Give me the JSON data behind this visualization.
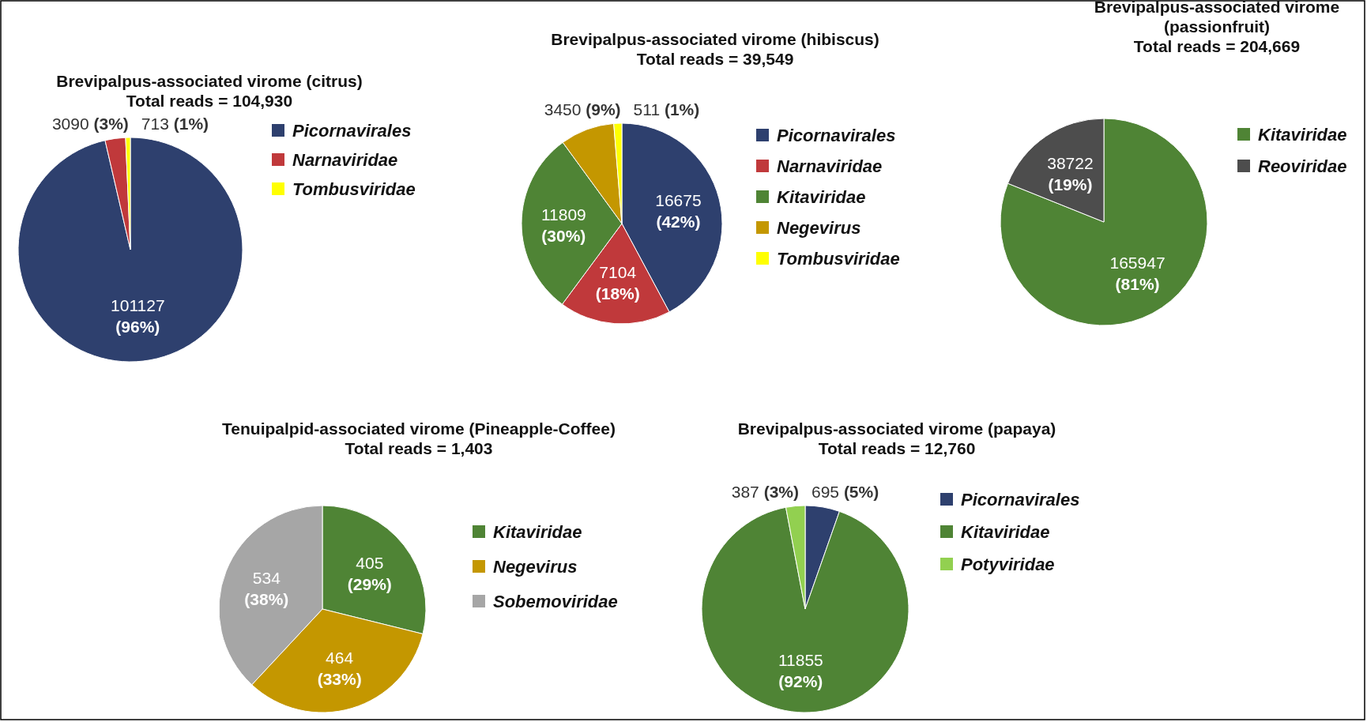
{
  "chart_data": [
    {
      "type": "pie",
      "title": "Brevipalpus-associated virome (citrus)",
      "subtitle": "Total reads = 104,930",
      "categories": [
        "Picornavirales",
        "Narnaviridae",
        "Tombusviridae"
      ],
      "values": [
        101127,
        3090,
        713
      ],
      "value_labels": [
        "101127 (96%)",
        "3090 (3%)",
        "713 (1%)"
      ],
      "colors": [
        "#2e406e",
        "#c0393b",
        "#ffff00"
      ],
      "legend": "right"
    },
    {
      "type": "pie",
      "title": "Brevipalpus-associated virome (hibiscus)",
      "subtitle": "Total reads = 39,549",
      "categories": [
        "Picornavirales",
        "Narnaviridae",
        "Kitaviridae",
        "Negevirus",
        "Tombusviridae"
      ],
      "values": [
        16675,
        7104,
        11809,
        3450,
        511
      ],
      "value_labels": [
        "16675 (42%)",
        "7104 (18%)",
        "11809 (30%)",
        "3450 (9%)",
        "511 (1%)"
      ],
      "colors": [
        "#2e406e",
        "#c0393b",
        "#4f8435",
        "#c49700",
        "#ffff00"
      ],
      "legend": "right"
    },
    {
      "type": "pie",
      "title": "Brevipalpus-associated virome (passionfruit)",
      "subtitle": "Total reads = 204,669",
      "categories": [
        "Kitaviridae",
        "Reoviridae"
      ],
      "values": [
        165947,
        38722
      ],
      "value_labels": [
        "165947 (81%)",
        "38722 (19%)"
      ],
      "colors": [
        "#4f8435",
        "#4d4d4d"
      ],
      "legend": "right"
    },
    {
      "type": "pie",
      "title": "Tenuipalpid-associated virome (Pineapple-Coffee)",
      "subtitle": "Total reads = 1,403",
      "categories": [
        "Kitaviridae",
        "Negevirus",
        "Sobemoviridae"
      ],
      "values": [
        405,
        464,
        534
      ],
      "value_labels": [
        "405 (29%)",
        "464 (33%)",
        "534 (38%)"
      ],
      "colors": [
        "#4f8435",
        "#c49700",
        "#a6a6a6"
      ],
      "legend": "right"
    },
    {
      "type": "pie",
      "title": "Brevipalpus-associated virome (papaya)",
      "subtitle": "Total reads = 12,760",
      "categories": [
        "Picornavirales",
        "Kitaviridae",
        "Potyviridae"
      ],
      "values": [
        695,
        11855,
        387
      ],
      "value_labels": [
        "695 (5%)",
        "11855 (92%)",
        "387 (3%)"
      ],
      "colors": [
        "#2e406e",
        "#4f8435",
        "#92d050"
      ],
      "legend": "right"
    }
  ]
}
